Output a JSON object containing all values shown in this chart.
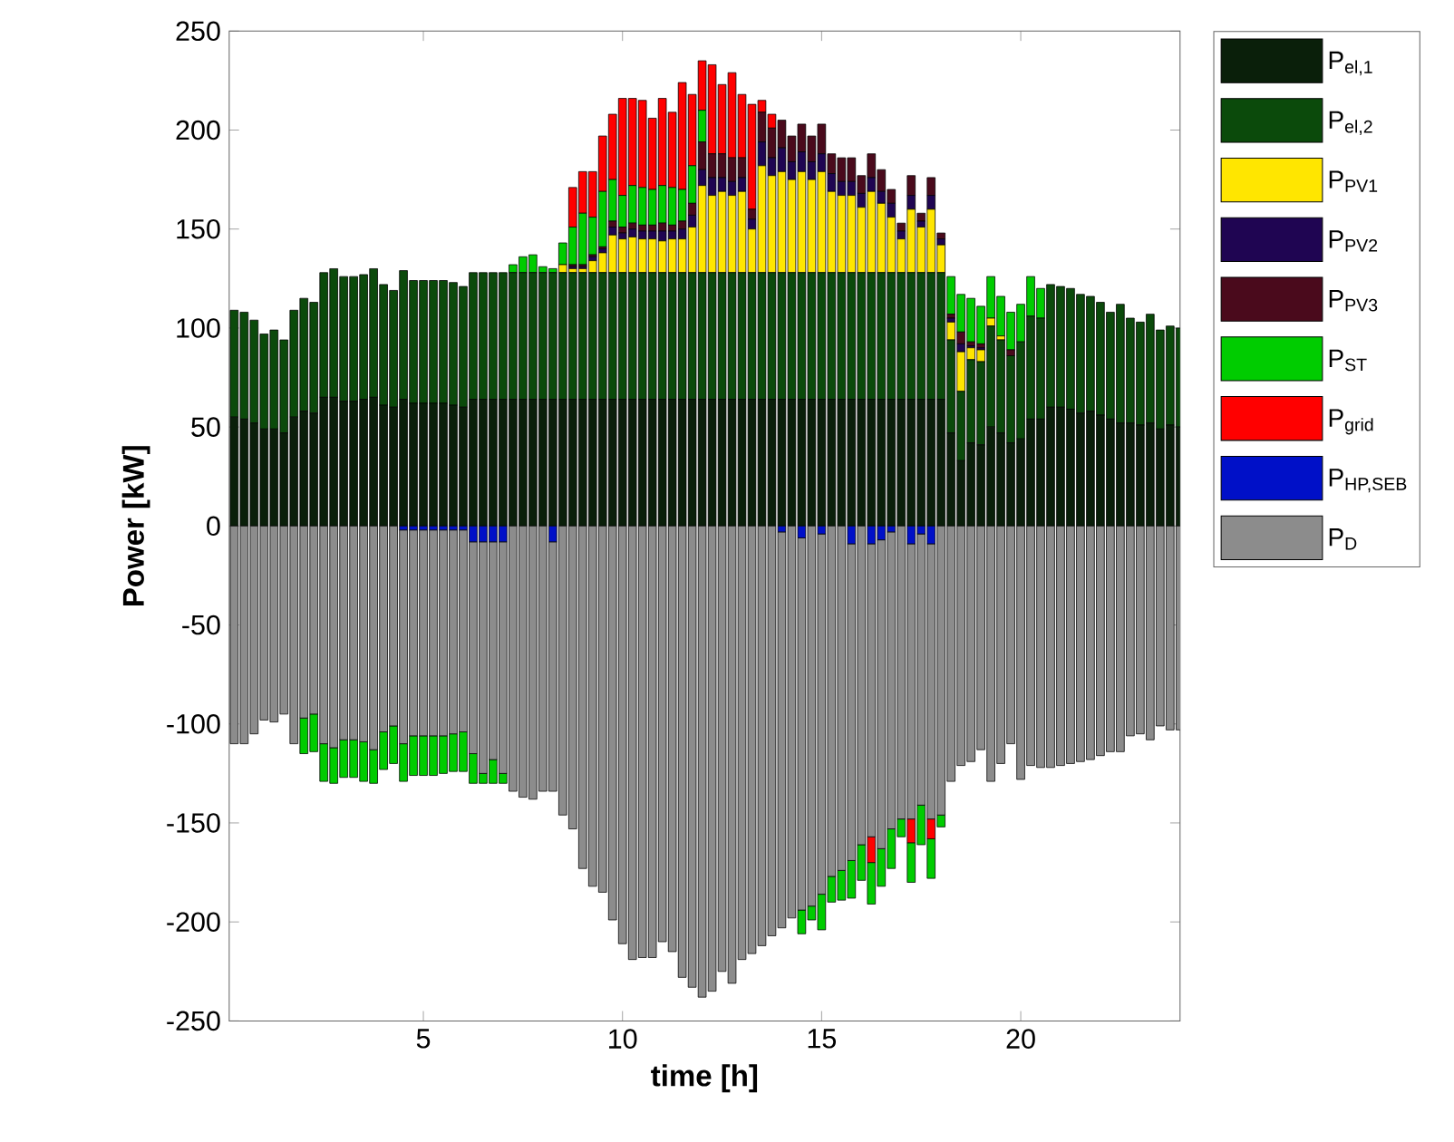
{
  "chart_data": {
    "type": "bar",
    "stacked": true,
    "xlabel": "time [h]",
    "ylabel": "Power [kW]",
    "legend": "top right",
    "x": [
      0.25,
      0.5,
      0.75,
      1,
      1.25,
      1.5,
      1.75,
      2,
      2.25,
      2.5,
      2.75,
      3,
      3.25,
      3.5,
      3.75,
      4,
      4.25,
      4.5,
      4.75,
      5,
      5.25,
      5.5,
      5.75,
      6,
      6.25,
      6.5,
      6.75,
      7,
      7.25,
      7.5,
      7.75,
      8,
      8.25,
      8.5,
      8.75,
      9,
      9.25,
      9.5,
      9.75,
      10,
      10.25,
      10.5,
      10.75,
      11,
      11.25,
      11.5,
      11.75,
      12,
      12.25,
      12.5,
      12.75,
      13,
      13.25,
      13.5,
      13.75,
      14,
      14.25,
      14.5,
      14.75,
      15,
      15.25,
      15.5,
      15.75,
      16,
      16.25,
      16.5,
      16.75,
      17,
      17.25,
      17.5,
      17.75,
      18,
      18.25,
      18.5,
      18.75,
      19,
      19.25,
      19.5,
      19.75,
      20,
      20.25,
      20.5,
      20.75,
      21,
      21.25,
      21.5,
      21.75,
      22,
      22.25,
      22.5,
      22.75,
      23,
      23.25,
      23.5,
      23.75,
      24
    ],
    "xlim": [
      0.125,
      24
    ],
    "xticks": [
      5,
      10,
      15,
      20
    ],
    "ylim": [
      -250,
      250
    ],
    "yticks": [
      -250,
      -200,
      -150,
      -100,
      -50,
      0,
      50,
      100,
      150,
      200,
      250
    ],
    "series": [
      {
        "name": "P$_{el,1}$",
        "color": "#0a1f0a",
        "values": [
          55,
          54,
          52,
          49,
          49,
          47,
          55,
          58,
          57,
          65,
          65,
          63,
          63,
          64,
          65,
          61,
          60,
          64,
          62,
          62,
          62,
          62,
          61,
          60,
          64,
          64,
          64,
          64,
          64,
          64,
          64,
          64,
          64,
          64,
          64,
          64,
          64,
          64,
          64,
          64,
          64,
          64,
          64,
          64,
          64,
          64,
          64,
          64,
          64,
          64,
          64,
          64,
          64,
          64,
          64,
          64,
          64,
          64,
          64,
          64,
          64,
          64,
          64,
          64,
          64,
          64,
          64,
          64,
          64,
          64,
          64,
          64,
          47,
          33,
          42,
          41,
          50,
          47,
          42,
          44,
          54,
          54,
          60,
          60,
          59,
          57,
          58,
          56,
          54,
          52,
          52,
          51,
          52,
          49,
          51,
          50
        ]
      },
      {
        "name": "P$_{el,2}$",
        "color": "#0b4a0b",
        "values": [
          54,
          54,
          52,
          48,
          50,
          47,
          54,
          57,
          56,
          63,
          65,
          63,
          63,
          63,
          65,
          61,
          59,
          65,
          62,
          62,
          62,
          62,
          62,
          61,
          64,
          64,
          64,
          64,
          64,
          64,
          64,
          64,
          64,
          64,
          64,
          64,
          64,
          64,
          64,
          64,
          64,
          64,
          64,
          64,
          64,
          64,
          64,
          64,
          64,
          64,
          64,
          64,
          64,
          64,
          64,
          64,
          64,
          64,
          64,
          64,
          64,
          64,
          64,
          64,
          64,
          64,
          64,
          64,
          64,
          64,
          64,
          64,
          47,
          35,
          42,
          42,
          51,
          47,
          44,
          49,
          52,
          51,
          62,
          61,
          61,
          60,
          58,
          57,
          54,
          60,
          53,
          52,
          55,
          50,
          50,
          50
        ]
      },
      {
        "name": "P$_{PV1}$",
        "color": "#ffe600",
        "values": [
          null,
          null,
          null,
          null,
          null,
          null,
          null,
          null,
          null,
          null,
          null,
          null,
          null,
          null,
          null,
          null,
          null,
          null,
          null,
          null,
          null,
          null,
          null,
          null,
          null,
          null,
          null,
          null,
          null,
          null,
          null,
          null,
          null,
          4,
          2,
          2,
          6,
          10,
          19,
          17,
          18,
          17,
          17,
          16,
          17,
          17,
          23,
          44,
          39,
          41,
          39,
          41,
          22,
          54,
          49,
          51,
          47,
          51,
          47,
          51,
          41,
          39,
          39,
          33,
          41,
          35,
          28,
          17,
          32,
          23,
          32,
          14,
          9,
          20,
          6,
          6,
          4,
          2,
          null,
          null,
          null,
          null,
          null,
          null,
          null,
          null,
          null,
          null,
          null,
          null,
          null,
          null,
          null,
          null,
          null,
          null
        ]
      },
      {
        "name": "P$_{PV2}$",
        "color": "#1f0552",
        "values": [
          null,
          null,
          null,
          null,
          null,
          null,
          null,
          null,
          null,
          null,
          null,
          null,
          null,
          null,
          null,
          null,
          null,
          null,
          null,
          null,
          null,
          null,
          null,
          null,
          null,
          null,
          null,
          null,
          null,
          null,
          null,
          null,
          null,
          null,
          1,
          1,
          2,
          2,
          4,
          3,
          4,
          4,
          4,
          5,
          4,
          5,
          6,
          8,
          9,
          7,
          7,
          7,
          5,
          12,
          9,
          12,
          9,
          10,
          9,
          9,
          9,
          7,
          7,
          7,
          7,
          6,
          7,
          4,
          7,
          3,
          7,
          3,
          2,
          4,
          1,
          1,
          null,
          null,
          null,
          null,
          null,
          null,
          null,
          null,
          null,
          null,
          null,
          null,
          null,
          null,
          null,
          null,
          null,
          null,
          null,
          null
        ]
      },
      {
        "name": "P$_{PV3}$",
        "color": "#4a0a1c",
        "values": [
          null,
          null,
          null,
          null,
          null,
          null,
          null,
          null,
          null,
          null,
          null,
          null,
          null,
          null,
          null,
          null,
          null,
          null,
          null,
          null,
          null,
          null,
          null,
          null,
          null,
          null,
          null,
          null,
          null,
          null,
          null,
          null,
          null,
          null,
          1,
          1,
          1,
          1,
          3,
          3,
          3,
          3,
          3,
          4,
          3,
          4,
          6,
          14,
          12,
          12,
          12,
          10,
          5,
          15,
          15,
          14,
          13,
          14,
          13,
          15,
          10,
          12,
          12,
          9,
          12,
          11,
          7,
          4,
          10,
          4,
          9,
          3,
          2,
          6,
          2,
          2,
          null,
          null,
          3,
          null,
          null,
          null,
          null,
          null,
          null,
          null,
          null,
          null,
          null,
          null,
          null,
          null,
          null,
          null,
          null,
          null
        ]
      },
      {
        "name": "P$_{ST}$",
        "color": "#00cc00",
        "values": [
          null,
          null,
          null,
          null,
          null,
          null,
          null,
          null,
          null,
          null,
          null,
          null,
          null,
          null,
          null,
          null,
          null,
          null,
          null,
          null,
          null,
          null,
          null,
          null,
          null,
          null,
          null,
          null,
          4,
          8,
          9,
          3,
          2,
          11,
          19,
          26,
          19,
          28,
          21,
          16,
          19,
          19,
          18,
          19,
          19,
          16,
          19,
          16,
          null,
          null,
          null,
          null,
          null,
          null,
          null,
          null,
          null,
          null,
          null,
          null,
          null,
          null,
          null,
          null,
          null,
          null,
          null,
          null,
          null,
          null,
          null,
          null,
          19,
          19,
          22,
          19,
          21,
          20,
          19,
          19,
          20,
          15,
          null,
          null,
          null,
          null,
          null,
          null,
          null,
          null,
          null,
          null,
          null,
          null,
          null,
          null
        ]
      },
      {
        "name": "P$_{grid}$",
        "color": "#ff0000",
        "values": [
          null,
          null,
          null,
          null,
          null,
          null,
          null,
          null,
          null,
          null,
          null,
          null,
          null,
          null,
          null,
          null,
          null,
          null,
          null,
          null,
          null,
          null,
          null,
          null,
          null,
          null,
          null,
          null,
          null,
          null,
          null,
          null,
          null,
          null,
          20,
          21,
          23,
          28,
          33,
          49,
          44,
          44,
          36,
          44,
          38,
          54,
          36,
          25,
          45,
          35,
          43,
          32,
          53,
          6,
          7,
          null,
          null,
          null,
          null,
          null,
          null,
          null,
          null,
          null,
          null,
          null,
          null,
          null,
          null,
          null,
          null,
          null,
          null,
          null,
          null,
          null,
          null,
          null,
          null,
          null,
          null,
          null,
          null,
          null,
          null,
          null,
          null,
          null,
          null,
          null,
          null,
          null,
          null,
          null,
          null,
          null
        ]
      },
      {
        "name": "P$_{HP,SEB}$",
        "color": "#0010c8",
        "values": [
          null,
          null,
          null,
          null,
          null,
          null,
          null,
          null,
          null,
          null,
          null,
          null,
          null,
          null,
          null,
          null,
          null,
          -2,
          -2,
          -2,
          -2,
          -2,
          -2,
          -2,
          -8,
          -8,
          -8,
          -8,
          null,
          null,
          null,
          null,
          -8,
          null,
          null,
          null,
          null,
          null,
          null,
          null,
          null,
          null,
          null,
          null,
          null,
          null,
          null,
          null,
          null,
          null,
          null,
          null,
          null,
          null,
          null,
          -3,
          null,
          -6,
          null,
          -4,
          null,
          null,
          -9,
          null,
          -9,
          -7,
          -3,
          null,
          -9,
          -4,
          -9,
          null,
          null,
          null,
          null,
          null,
          null,
          null,
          null,
          null,
          null,
          null,
          null,
          null,
          null,
          null,
          null,
          null,
          null,
          null,
          null,
          null,
          null,
          null,
          null,
          null
        ]
      },
      {
        "name": "P$_{D}$",
        "color": "#8c8c8c",
        "values": [
          -110,
          -110,
          -105,
          -98,
          -99,
          -95,
          -110,
          -97,
          -95,
          -110,
          -112,
          -108,
          -108,
          -109,
          -113,
          -104,
          -101,
          -108,
          -104,
          -104,
          -104,
          -104,
          -103,
          -102,
          -107,
          -117,
          -110,
          -117,
          -134,
          -137,
          -138,
          -134,
          -126,
          -146,
          -153,
          -173,
          -182,
          -185,
          -199,
          -211,
          -219,
          -218,
          -218,
          -210,
          -215,
          -228,
          -233,
          -238,
          -235,
          -225,
          -231,
          -219,
          -216,
          -212,
          -207,
          -200,
          -198,
          -188,
          -192,
          -182,
          -177,
          -174,
          -160,
          -161,
          -148,
          -156,
          -150,
          -148,
          -139,
          -137,
          -139,
          -146,
          -129,
          -121,
          -119,
          -113,
          -129,
          -120,
          -110,
          -128,
          -121,
          -122,
          -122,
          -121,
          -120,
          -119,
          -118,
          -116,
          -114,
          -114,
          -106,
          -105,
          -108,
          -101,
          -103,
          -103
        ]
      },
      {
        "color": "#ff0000",
        "values": [
          null,
          null,
          null,
          null,
          null,
          null,
          null,
          null,
          null,
          null,
          null,
          null,
          null,
          null,
          null,
          null,
          null,
          null,
          null,
          null,
          null,
          null,
          null,
          null,
          null,
          null,
          null,
          null,
          null,
          null,
          null,
          null,
          null,
          null,
          null,
          null,
          null,
          null,
          null,
          null,
          null,
          null,
          null,
          null,
          null,
          null,
          null,
          null,
          null,
          null,
          null,
          null,
          null,
          null,
          null,
          null,
          null,
          null,
          null,
          null,
          null,
          null,
          null,
          null,
          -13,
          null,
          null,
          null,
          -12,
          null,
          -10,
          null,
          null,
          null,
          null,
          null,
          null,
          null,
          null,
          null,
          null,
          null,
          null,
          null,
          null,
          null,
          null,
          null,
          null,
          null,
          null,
          null,
          null,
          null,
          null,
          null
        ]
      },
      {
        "color": "#00cc00",
        "values": [
          null,
          null,
          null,
          null,
          null,
          null,
          null,
          -18,
          -19,
          -19,
          -18,
          -19,
          -19,
          -20,
          -17,
          -19,
          -19,
          -19,
          -20,
          -20,
          -20,
          -19,
          -19,
          -20,
          -15,
          -5,
          -12,
          -5,
          null,
          null,
          null,
          null,
          null,
          null,
          null,
          null,
          null,
          null,
          null,
          null,
          null,
          null,
          null,
          null,
          null,
          null,
          null,
          null,
          null,
          null,
          null,
          null,
          null,
          null,
          null,
          null,
          null,
          -12,
          -7,
          -18,
          -13,
          -15,
          -19,
          -18,
          -21,
          -19,
          -20,
          -9,
          -20,
          -20,
          -20,
          -6,
          null,
          null,
          null,
          null,
          null,
          null,
          null,
          null,
          null,
          null,
          null,
          null,
          null,
          null,
          null,
          null,
          null,
          null,
          null,
          null,
          null,
          null,
          null,
          null
        ]
      }
    ]
  }
}
